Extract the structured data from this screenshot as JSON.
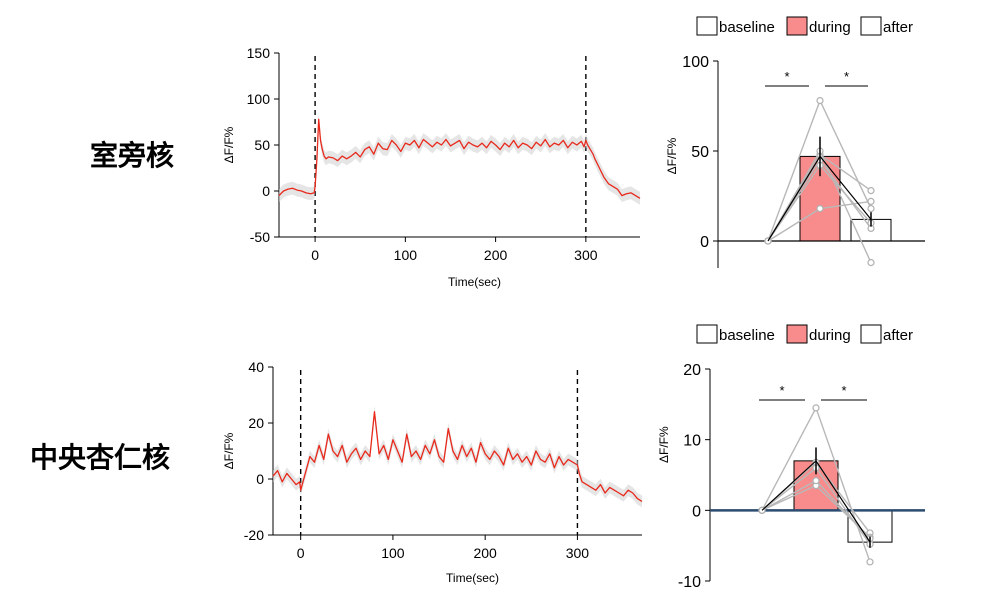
{
  "chart_data": [
    {
      "id": "trace-pvn",
      "type": "line",
      "region_label": "室旁核",
      "xlabel": "Time(sec)",
      "ylabel": "ΔF/F%",
      "xlim": [
        -40,
        360
      ],
      "ylim": [
        -50,
        150
      ],
      "xticks": [
        0,
        100,
        200,
        300
      ],
      "yticks": [
        -50,
        0,
        50,
        100,
        150
      ],
      "event_lines_sec": [
        0,
        300
      ],
      "series": [
        {
          "name": "mean",
          "color": "#e8291c",
          "x": [
            -40,
            -35,
            -30,
            -25,
            -20,
            -15,
            -10,
            -5,
            -1,
            0,
            2,
            4,
            6,
            8,
            10,
            12,
            15,
            20,
            25,
            30,
            35,
            40,
            45,
            50,
            55,
            60,
            65,
            70,
            75,
            80,
            85,
            90,
            95,
            100,
            105,
            110,
            115,
            120,
            125,
            130,
            135,
            140,
            145,
            150,
            155,
            160,
            165,
            170,
            175,
            180,
            185,
            190,
            195,
            200,
            205,
            210,
            215,
            220,
            225,
            230,
            235,
            240,
            245,
            250,
            255,
            260,
            265,
            270,
            275,
            280,
            285,
            290,
            295,
            298,
            300,
            302,
            305,
            308,
            310,
            315,
            320,
            325,
            330,
            335,
            340,
            345,
            350,
            355,
            360
          ],
          "y": [
            -5,
            0,
            2,
            3,
            1,
            0,
            -2,
            -3,
            -2,
            5,
            35,
            78,
            55,
            45,
            38,
            35,
            37,
            36,
            33,
            38,
            35,
            38,
            42,
            37,
            45,
            48,
            40,
            52,
            46,
            45,
            55,
            50,
            43,
            52,
            50,
            55,
            47,
            56,
            52,
            48,
            53,
            50,
            56,
            49,
            52,
            55,
            46,
            53,
            50,
            48,
            52,
            47,
            54,
            50,
            45,
            52,
            48,
            55,
            47,
            52,
            50,
            46,
            53,
            49,
            56,
            48,
            52,
            50,
            55,
            47,
            53,
            50,
            54,
            48,
            55,
            50,
            45,
            40,
            35,
            25,
            15,
            8,
            5,
            2,
            -5,
            -3,
            -2,
            -5,
            -8
          ]
        }
      ]
    },
    {
      "id": "bar-pvn",
      "type": "bar",
      "ylabel": "ΔF/F%",
      "ylim": [
        -15,
        100
      ],
      "yticks": [
        0,
        50,
        100
      ],
      "legend": [
        "baseline",
        "during",
        "after"
      ],
      "categories": [
        "baseline",
        "during",
        "after"
      ],
      "values": [
        0,
        47,
        12
      ],
      "errors": [
        0,
        11,
        4
      ],
      "colors": [
        "#ffffff",
        "#f88c8c",
        "#ffffff"
      ],
      "individual_points": [
        [
          0,
          78,
          18
        ],
        [
          0,
          48,
          28
        ],
        [
          0,
          18,
          22
        ],
        [
          0,
          45,
          7
        ],
        [
          0,
          50,
          -12
        ],
        [
          0,
          42,
          10
        ]
      ],
      "mean_line": [
        0,
        47,
        12
      ],
      "significance": [
        {
          "pair": [
            0,
            1
          ],
          "label": "*"
        },
        {
          "pair": [
            1,
            2
          ],
          "label": "*"
        }
      ]
    },
    {
      "id": "trace-cea",
      "type": "line",
      "region_label": "中央杏仁核",
      "xlabel": "Time(sec)",
      "ylabel": "ΔF/F%",
      "xlim": [
        -30,
        370
      ],
      "ylim": [
        -20,
        40
      ],
      "xticks": [
        0,
        100,
        200,
        300
      ],
      "yticks": [
        -20,
        0,
        20,
        40
      ],
      "event_lines_sec": [
        0,
        300
      ],
      "series": [
        {
          "name": "mean",
          "color": "#e8291c",
          "x": [
            -30,
            -25,
            -20,
            -15,
            -10,
            -5,
            -1,
            0,
            5,
            10,
            15,
            20,
            25,
            30,
            35,
            40,
            45,
            50,
            55,
            60,
            65,
            70,
            75,
            80,
            85,
            90,
            95,
            100,
            105,
            110,
            115,
            120,
            125,
            130,
            135,
            140,
            145,
            150,
            155,
            160,
            165,
            170,
            175,
            180,
            185,
            190,
            195,
            200,
            205,
            210,
            215,
            220,
            225,
            230,
            235,
            240,
            245,
            250,
            255,
            260,
            265,
            270,
            275,
            280,
            285,
            290,
            295,
            300,
            302,
            305,
            310,
            315,
            320,
            325,
            330,
            335,
            340,
            345,
            350,
            355,
            360,
            365,
            370
          ],
          "y": [
            1,
            3,
            -1,
            2,
            0,
            -2,
            -1,
            -4,
            2,
            8,
            6,
            12,
            7,
            16,
            10,
            8,
            12,
            6,
            9,
            11,
            7,
            10,
            8,
            24,
            9,
            12,
            7,
            14,
            10,
            6,
            16,
            8,
            10,
            7,
            12,
            9,
            14,
            8,
            6,
            18,
            10,
            7,
            12,
            8,
            11,
            6,
            13,
            9,
            7,
            10,
            8,
            5,
            11,
            7,
            9,
            6,
            8,
            5,
            10,
            7,
            6,
            9,
            4,
            8,
            5,
            7,
            6,
            5,
            2,
            -1,
            -2,
            -3,
            -4,
            -2,
            -5,
            -3,
            -4,
            -5,
            -6,
            -4,
            -5,
            -7,
            -8
          ]
        }
      ]
    },
    {
      "id": "bar-cea",
      "type": "bar",
      "ylabel": "ΔF/F%",
      "ylim": [
        -10,
        20
      ],
      "yticks": [
        -10,
        0,
        10,
        20
      ],
      "legend": [
        "baseline",
        "during",
        "after"
      ],
      "categories": [
        "baseline",
        "during",
        "after"
      ],
      "values": [
        0,
        7,
        -4.5
      ],
      "errors": [
        0,
        1.9,
        0.8
      ],
      "colors": [
        "#ffffff",
        "#f88c8c",
        "#ffffff"
      ],
      "individual_points": [
        [
          0,
          14.5,
          -7.3
        ],
        [
          0,
          6.8,
          -3.2
        ],
        [
          0,
          6.0,
          -4.8
        ],
        [
          0,
          3.5,
          -3.8
        ],
        [
          0,
          4.2,
          -4.0
        ]
      ],
      "mean_line": [
        0,
        7,
        -4.5
      ],
      "significance": [
        {
          "pair": [
            0,
            1
          ],
          "label": "*"
        },
        {
          "pair": [
            1,
            2
          ],
          "label": "*"
        }
      ]
    }
  ]
}
